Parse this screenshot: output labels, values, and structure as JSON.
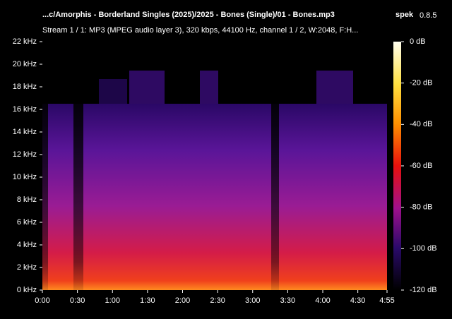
{
  "chart_data": {
    "type": "spectrogram",
    "title": "...c/Amorphis - Borderland Singles (2025)/2025 - Bones (Single)/01 - Bones.mp3",
    "app": "spek",
    "version": "0.8.5",
    "subtitle": "Stream 1 / 1: MP3 (MPEG audio layer 3), 320 kbps, 44100 Hz, channel 1 / 2, W:2048, F:H...",
    "xlim": [
      0,
      295
    ],
    "xticks": [
      {
        "value": 0,
        "label": "0:00"
      },
      {
        "value": 30,
        "label": "0:30"
      },
      {
        "value": 60,
        "label": "1:00"
      },
      {
        "value": 90,
        "label": "1:30"
      },
      {
        "value": 120,
        "label": "2:00"
      },
      {
        "value": 150,
        "label": "2:30"
      },
      {
        "value": 180,
        "label": "3:00"
      },
      {
        "value": 210,
        "label": "3:30"
      },
      {
        "value": 240,
        "label": "4:00"
      },
      {
        "value": 270,
        "label": "4:30"
      },
      {
        "value": 295,
        "label": "4:55"
      }
    ],
    "ylim": [
      0,
      22
    ],
    "yticks": [
      {
        "value": 0,
        "label": "0 kHz"
      },
      {
        "value": 2,
        "label": "2 kHz"
      },
      {
        "value": 4,
        "label": "4 kHz"
      },
      {
        "value": 6,
        "label": "6 kHz"
      },
      {
        "value": 8,
        "label": "8 kHz"
      },
      {
        "value": 10,
        "label": "10 kHz"
      },
      {
        "value": 12,
        "label": "12 kHz"
      },
      {
        "value": 14,
        "label": "14 kHz"
      },
      {
        "value": 16,
        "label": "16 kHz"
      },
      {
        "value": 18,
        "label": "18 kHz"
      },
      {
        "value": 20,
        "label": "20 kHz"
      },
      {
        "value": 22,
        "label": "22 kHz"
      }
    ],
    "clim": [
      -120,
      0
    ],
    "cticks": [
      {
        "value": 0,
        "label": "0 dB"
      },
      {
        "value": -20,
        "label": "-20 dB"
      },
      {
        "value": -40,
        "label": "-40 dB"
      },
      {
        "value": -60,
        "label": "-60 dB"
      },
      {
        "value": -80,
        "label": "-80 dB"
      },
      {
        "value": -100,
        "label": "-100 dB"
      },
      {
        "value": -120,
        "label": "-120 dB"
      }
    ]
  }
}
